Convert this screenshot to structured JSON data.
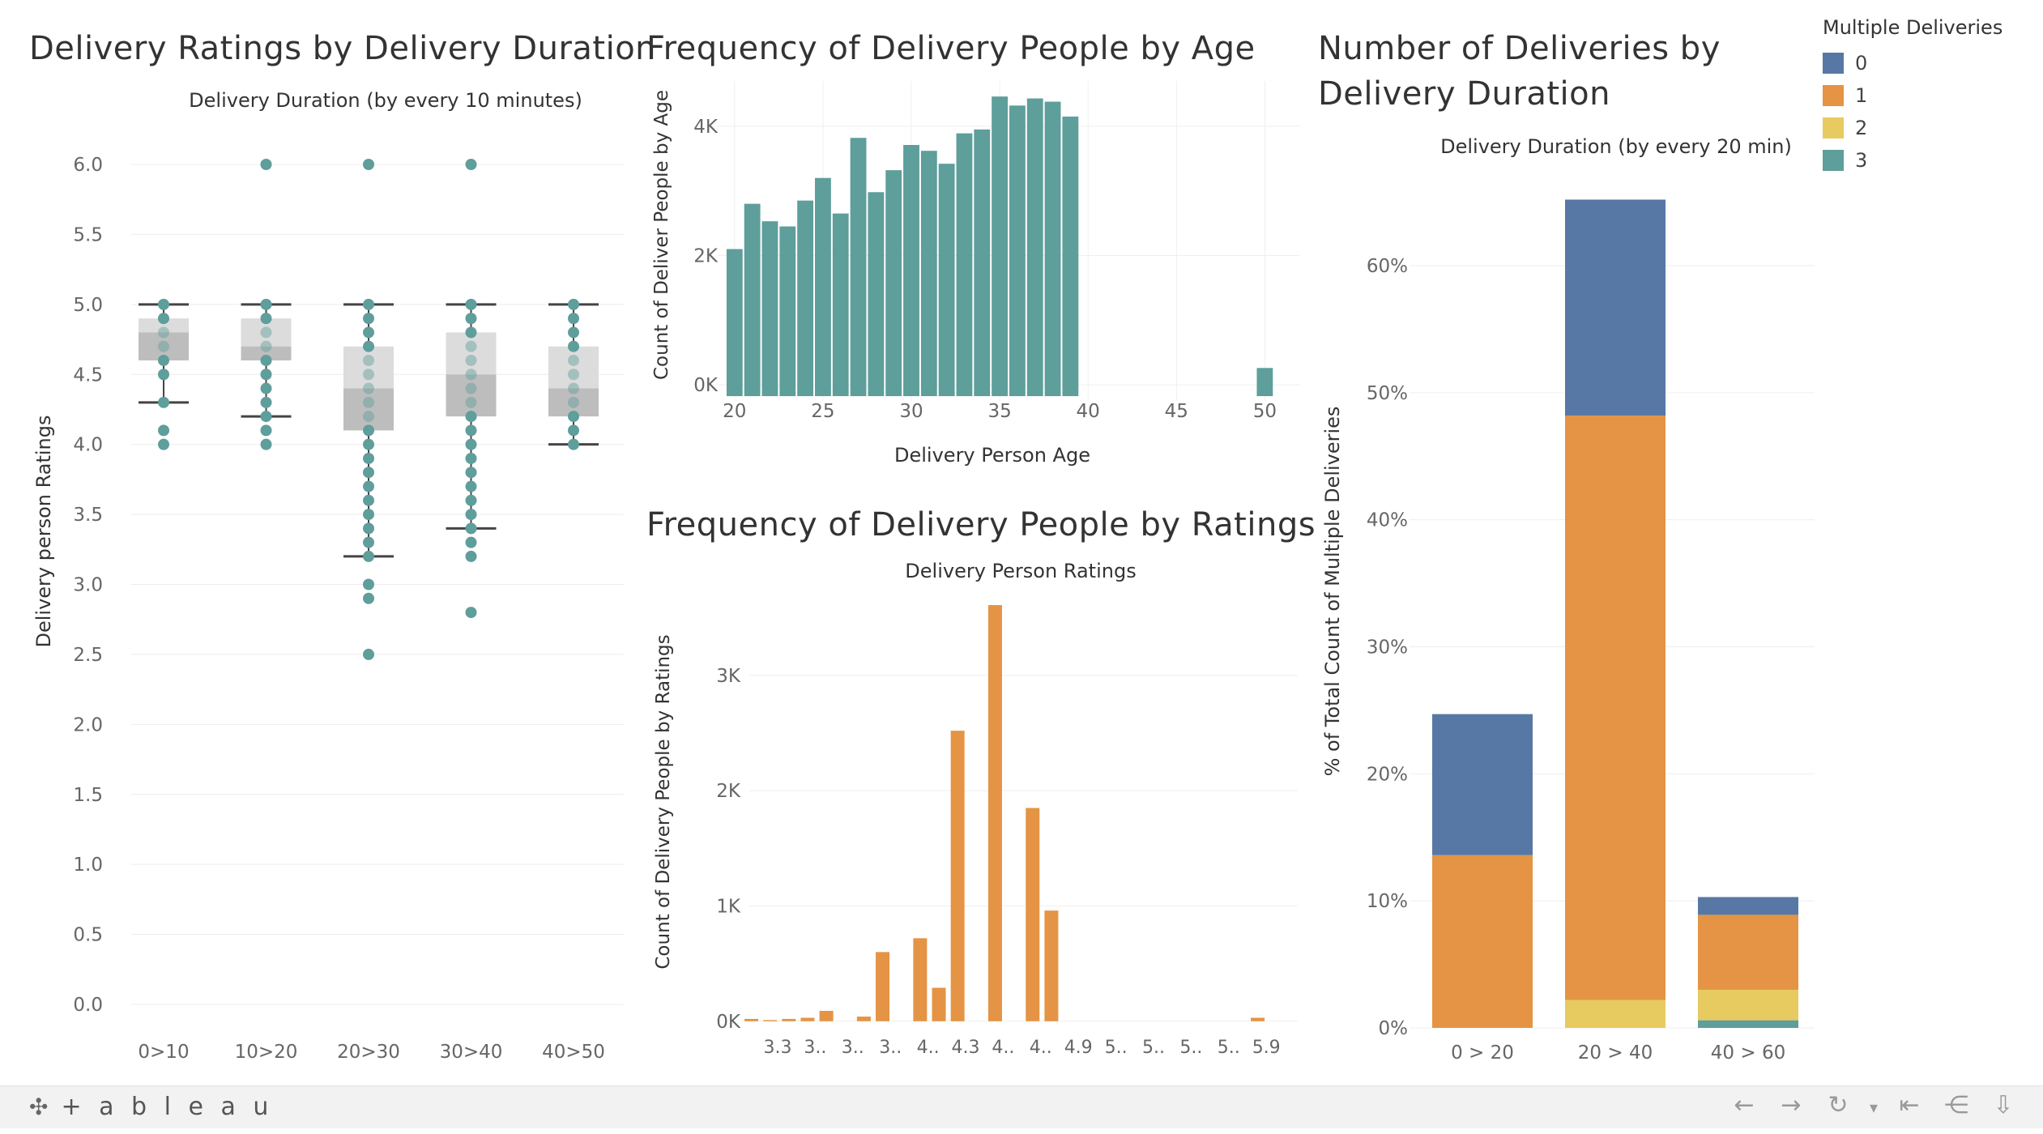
{
  "footer": {
    "brand": "+ a b l e a u",
    "icons": [
      "back-arrow-icon",
      "forward-arrow-icon",
      "redo-icon",
      "dropdown-icon",
      "revert-icon",
      "share-icon",
      "download-icon"
    ]
  },
  "legend": {
    "title": "Multiple Deliveries",
    "items": [
      {
        "label": "0",
        "color": "#5778a4"
      },
      {
        "label": "1",
        "color": "#e49444"
      },
      {
        "label": "2",
        "color": "#e7ca60"
      },
      {
        "label": "3",
        "color": "#5e9e9b"
      }
    ]
  },
  "charts": {
    "box": {
      "title": "Delivery Ratings by Delivery Duration"
    },
    "age": {
      "title": "Frequency of Delivery People by Age"
    },
    "ratings": {
      "title": "Frequency of Delivery People by Ratings"
    },
    "stacked": {
      "title_line1": "Number of Deliveries by",
      "title_line2": "Delivery Duration"
    }
  },
  "chart_data": [
    {
      "type": "box",
      "title": "Delivery Ratings by Delivery Duration",
      "xlabel": "Delivery Duration (by every 10 minutes)",
      "ylabel": "Delivery person Ratings",
      "ylim": [
        0,
        6.25
      ],
      "yticks": [
        "0.0",
        "0.5",
        "1.0",
        "1.5",
        "2.0",
        "2.5",
        "3.0",
        "3.5",
        "4.0",
        "4.5",
        "5.0",
        "5.5",
        "6.0"
      ],
      "categories": [
        "0>10",
        "10>20",
        "20>30",
        "30>40",
        "40>50"
      ],
      "boxes": [
        {
          "whisker_low": 4.3,
          "q1": 4.6,
          "median": 4.8,
          "q3": 4.9,
          "whisker_high": 5.0
        },
        {
          "whisker_low": 4.2,
          "q1": 4.6,
          "median": 4.7,
          "q3": 4.9,
          "whisker_high": 5.0
        },
        {
          "whisker_low": 3.2,
          "q1": 4.1,
          "median": 4.4,
          "q3": 4.7,
          "whisker_high": 5.0
        },
        {
          "whisker_low": 3.4,
          "q1": 4.2,
          "median": 4.5,
          "q3": 4.8,
          "whisker_high": 5.0
        },
        {
          "whisker_low": 4.0,
          "q1": 4.2,
          "median": 4.4,
          "q3": 4.7,
          "whisker_high": 5.0
        }
      ],
      "points": [
        [
          4.0,
          4.1,
          4.3,
          4.5,
          4.6,
          4.7,
          4.8,
          4.9,
          5.0
        ],
        [
          4.0,
          4.1,
          4.2,
          4.3,
          4.4,
          4.5,
          4.6,
          4.7,
          4.8,
          4.9,
          5.0,
          6.0
        ],
        [
          2.5,
          2.9,
          3.0,
          3.2,
          3.3,
          3.4,
          3.5,
          3.6,
          3.7,
          3.8,
          3.9,
          4.0,
          4.1,
          4.2,
          4.3,
          4.4,
          4.5,
          4.6,
          4.7,
          4.8,
          4.9,
          5.0,
          6.0
        ],
        [
          2.8,
          3.2,
          3.3,
          3.4,
          3.5,
          3.6,
          3.7,
          3.8,
          3.9,
          4.0,
          4.1,
          4.2,
          4.3,
          4.4,
          4.5,
          4.6,
          4.7,
          4.8,
          4.9,
          5.0,
          6.0
        ],
        [
          4.0,
          4.1,
          4.2,
          4.3,
          4.4,
          4.5,
          4.6,
          4.7,
          4.8,
          4.9,
          5.0
        ]
      ]
    },
    {
      "type": "bar",
      "title": "Frequency of Delivery People by Age",
      "xlabel": "Delivery Person Age",
      "ylabel": "Count of Deliver People by Age",
      "xlim": [
        19,
        52
      ],
      "ylim": [
        -250,
        4700
      ],
      "xticks": [
        "20",
        "25",
        "30",
        "35",
        "40",
        "45",
        "50"
      ],
      "yticks": [
        "0K",
        "2K",
        "4K"
      ],
      "x": [
        20,
        21,
        22,
        23,
        24,
        25,
        26,
        27,
        28,
        29,
        30,
        31,
        32,
        33,
        34,
        35,
        36,
        37,
        38,
        39,
        50
      ],
      "values": [
        2100,
        2800,
        2530,
        2450,
        2850,
        3200,
        2650,
        3820,
        2980,
        3320,
        3710,
        3620,
        3420,
        3890,
        3950,
        4460,
        4320,
        4430,
        4380,
        4150,
        260
      ]
    },
    {
      "type": "bar",
      "title": "Frequency of Delivery People by Ratings",
      "xlabel": "Delivery Person Ratings",
      "ylabel": "Count of Delivery People by Ratings",
      "ylim": [
        -100,
        3800
      ],
      "yticks": [
        "0K",
        "1K",
        "2K",
        "3K"
      ],
      "categories": [
        "3.3",
        "3.4",
        "3.5",
        "3.6",
        "3.7",
        "3.8",
        "3.9",
        "4.0",
        "4.1",
        "4.2",
        "4.3",
        "4.4",
        "4.5",
        "4.6",
        "4.7",
        "4.8",
        "4.9",
        "5.0",
        "5.1",
        "5.2",
        "5.3",
        "5.4",
        "5.5",
        "5.6",
        "5.7",
        "5.8",
        "5.9",
        "6.0"
      ],
      "tick_labels": [
        "3.3",
        "3..",
        "3..",
        "3..",
        "4..",
        "4.3",
        "4..",
        "4..",
        "4.9",
        "5..",
        "5..",
        "5..",
        "5..",
        "5.9"
      ],
      "values": [
        20,
        10,
        20,
        30,
        90,
        0,
        40,
        600,
        0,
        720,
        290,
        2520,
        0,
        3610,
        0,
        1850,
        960,
        0,
        0,
        0,
        0,
        0,
        0,
        0,
        0,
        0,
        0,
        30
      ]
    },
    {
      "type": "bar",
      "stacked": true,
      "title": "Number of Deliveries by Delivery Duration",
      "xlabel": "Delivery Duration (by every 20 min)",
      "ylabel": "% of Total Count of Multiple Deliveries",
      "ylim": [
        0,
        0.69
      ],
      "yticks": [
        "0%",
        "10%",
        "20%",
        "30%",
        "40%",
        "50%",
        "60%"
      ],
      "categories": [
        "0 > 20",
        "20 > 40",
        "40 > 60"
      ],
      "series": [
        {
          "name": "3",
          "values": [
            0.0,
            0.0,
            0.006
          ]
        },
        {
          "name": "2",
          "values": [
            0.0,
            0.022,
            0.024
          ]
        },
        {
          "name": "1",
          "values": [
            0.136,
            0.46,
            0.059
          ]
        },
        {
          "name": "0",
          "values": [
            0.111,
            0.17,
            0.014
          ]
        }
      ]
    }
  ]
}
